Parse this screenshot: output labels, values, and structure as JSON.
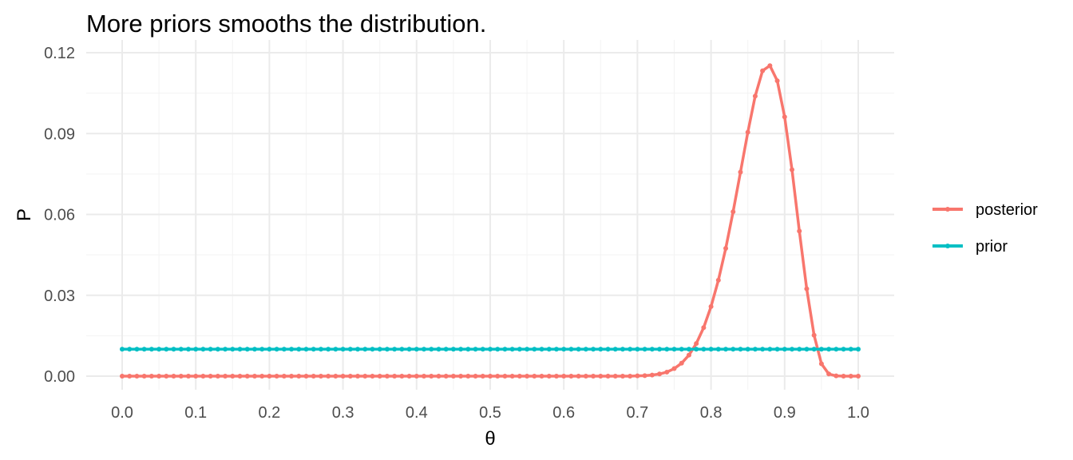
{
  "title": "More priors smooths the distribution.",
  "chart_data": {
    "type": "line",
    "title": "More priors smooths the distribution.",
    "xlabel": "θ",
    "ylabel": "P",
    "xlim": [
      0,
      1
    ],
    "ylim": [
      0,
      0.12
    ],
    "x_ticks": [
      0.0,
      0.1,
      0.2,
      0.3,
      0.4,
      0.5,
      0.6,
      0.7,
      0.8,
      0.9,
      1.0
    ],
    "x_tick_labels": [
      "0.0",
      "0.1",
      "0.2",
      "0.3",
      "0.4",
      "0.5",
      "0.6",
      "0.7",
      "0.8",
      "0.9",
      "1.0"
    ],
    "y_ticks": [
      0.0,
      0.03,
      0.06,
      0.09,
      0.12
    ],
    "y_tick_labels": [
      "0.00",
      "0.03",
      "0.06",
      "0.09",
      "0.12"
    ],
    "grid": true,
    "legend_position": "right",
    "series": [
      {
        "name": "posterior",
        "color": "#F8766D",
        "x": [
          0.0,
          0.01,
          0.02,
          0.03,
          0.04,
          0.05,
          0.06,
          0.07,
          0.08,
          0.09,
          0.1,
          0.11,
          0.12,
          0.13,
          0.14,
          0.15,
          0.16,
          0.17,
          0.18,
          0.19,
          0.2,
          0.21,
          0.22,
          0.23,
          0.24,
          0.25,
          0.26,
          0.27,
          0.28,
          0.29,
          0.3,
          0.31,
          0.32,
          0.33,
          0.34,
          0.35,
          0.36,
          0.37,
          0.38,
          0.39,
          0.4,
          0.41,
          0.42,
          0.43,
          0.44,
          0.45,
          0.46,
          0.47,
          0.48,
          0.49,
          0.5,
          0.51,
          0.52,
          0.53,
          0.54,
          0.55,
          0.56,
          0.57,
          0.58,
          0.59,
          0.6,
          0.61,
          0.62,
          0.63,
          0.64,
          0.65,
          0.66,
          0.67,
          0.68,
          0.69,
          0.7,
          0.71,
          0.72,
          0.73,
          0.74,
          0.75,
          0.76,
          0.77,
          0.78,
          0.79,
          0.8,
          0.81,
          0.82,
          0.83,
          0.84,
          0.85,
          0.86,
          0.87,
          0.88,
          0.89,
          0.9,
          0.91,
          0.92,
          0.93,
          0.94,
          0.95,
          0.96,
          0.97,
          0.98,
          0.99,
          1.0
        ],
        "values": [
          0,
          0,
          0,
          0,
          0,
          0,
          0,
          0,
          0,
          0,
          0,
          0,
          0,
          0,
          0,
          0,
          0,
          0,
          0,
          0,
          0,
          0,
          0,
          0,
          0,
          0,
          0,
          0,
          0,
          0,
          0,
          0,
          0,
          0,
          0,
          0,
          0,
          0,
          0,
          0,
          0,
          0,
          0,
          0,
          0,
          0,
          0,
          0,
          0,
          0,
          0,
          0,
          0,
          0,
          0,
          0,
          0,
          0,
          0,
          0,
          0,
          0,
          0,
          0,
          0,
          0,
          0,
          0,
          0,
          0,
          0.0001,
          0.0002,
          0.0004,
          0.0008,
          0.0015,
          0.0028,
          0.0048,
          0.0078,
          0.0121,
          0.018,
          0.0258,
          0.0356,
          0.0474,
          0.061,
          0.0757,
          0.0905,
          0.1039,
          0.1133,
          0.1152,
          0.1096,
          0.0962,
          0.0766,
          0.0538,
          0.0324,
          0.0152,
          0.0046,
          0.0008,
          0.0001,
          0,
          0,
          0
        ]
      },
      {
        "name": "prior",
        "color": "#00BFC4",
        "x": [
          0.0,
          0.01,
          0.02,
          0.03,
          0.04,
          0.05,
          0.06,
          0.07,
          0.08,
          0.09,
          0.1,
          0.11,
          0.12,
          0.13,
          0.14,
          0.15,
          0.16,
          0.17,
          0.18,
          0.19,
          0.2,
          0.21,
          0.22,
          0.23,
          0.24,
          0.25,
          0.26,
          0.27,
          0.28,
          0.29,
          0.3,
          0.31,
          0.32,
          0.33,
          0.34,
          0.35,
          0.36,
          0.37,
          0.38,
          0.39,
          0.4,
          0.41,
          0.42,
          0.43,
          0.44,
          0.45,
          0.46,
          0.47,
          0.48,
          0.49,
          0.5,
          0.51,
          0.52,
          0.53,
          0.54,
          0.55,
          0.56,
          0.57,
          0.58,
          0.59,
          0.6,
          0.61,
          0.62,
          0.63,
          0.64,
          0.65,
          0.66,
          0.67,
          0.68,
          0.69,
          0.7,
          0.71,
          0.72,
          0.73,
          0.74,
          0.75,
          0.76,
          0.77,
          0.78,
          0.79,
          0.8,
          0.81,
          0.82,
          0.83,
          0.84,
          0.85,
          0.86,
          0.87,
          0.88,
          0.89,
          0.9,
          0.91,
          0.92,
          0.93,
          0.94,
          0.95,
          0.96,
          0.97,
          0.98,
          0.99,
          1.0
        ],
        "values": [
          0.01,
          0.01,
          0.01,
          0.01,
          0.01,
          0.01,
          0.01,
          0.01,
          0.01,
          0.01,
          0.01,
          0.01,
          0.01,
          0.01,
          0.01,
          0.01,
          0.01,
          0.01,
          0.01,
          0.01,
          0.01,
          0.01,
          0.01,
          0.01,
          0.01,
          0.01,
          0.01,
          0.01,
          0.01,
          0.01,
          0.01,
          0.01,
          0.01,
          0.01,
          0.01,
          0.01,
          0.01,
          0.01,
          0.01,
          0.01,
          0.01,
          0.01,
          0.01,
          0.01,
          0.01,
          0.01,
          0.01,
          0.01,
          0.01,
          0.01,
          0.01,
          0.01,
          0.01,
          0.01,
          0.01,
          0.01,
          0.01,
          0.01,
          0.01,
          0.01,
          0.01,
          0.01,
          0.01,
          0.01,
          0.01,
          0.01,
          0.01,
          0.01,
          0.01,
          0.01,
          0.01,
          0.01,
          0.01,
          0.01,
          0.01,
          0.01,
          0.01,
          0.01,
          0.01,
          0.01,
          0.01,
          0.01,
          0.01,
          0.01,
          0.01,
          0.01,
          0.01,
          0.01,
          0.01,
          0.01,
          0.01,
          0.01,
          0.01,
          0.01,
          0.01,
          0.01,
          0.01,
          0.01,
          0.01,
          0.01,
          0.01
        ]
      }
    ]
  }
}
